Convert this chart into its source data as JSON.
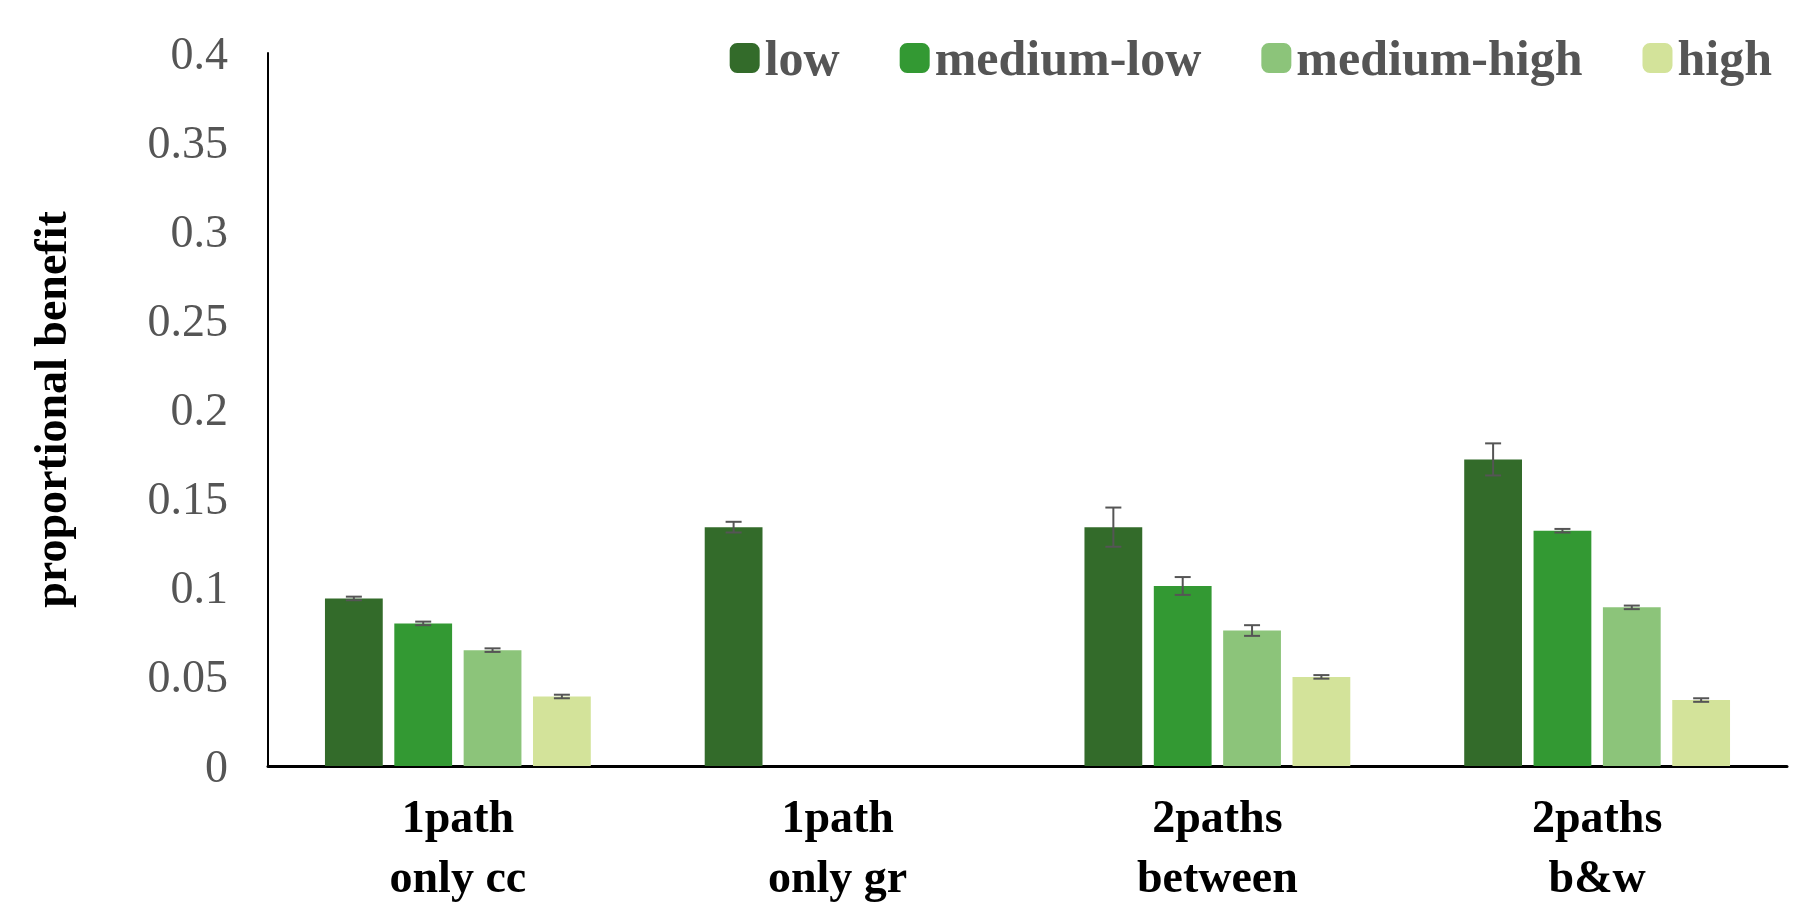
{
  "chart_data": {
    "type": "bar",
    "ylabel": "proportional benefit",
    "categories": [
      "1path\nonly cc",
      "1path\nonly gr",
      "2paths\nbetween",
      "2paths\nb&w"
    ],
    "series": [
      {
        "name": "low",
        "color": "#336b2a",
        "values": [
          0.094,
          0.134,
          0.134,
          0.172
        ],
        "errors": [
          0.001,
          0.003,
          0.011,
          0.009
        ]
      },
      {
        "name": "medium-low",
        "color": "#339933",
        "values": [
          0.08,
          null,
          0.101,
          0.132
        ],
        "errors": [
          0.001,
          null,
          0.005,
          0.001
        ]
      },
      {
        "name": "medium-high",
        "color": "#8cc47a",
        "values": [
          0.065,
          null,
          0.076,
          0.089
        ],
        "errors": [
          0.001,
          null,
          0.003,
          0.001
        ]
      },
      {
        "name": "high",
        "color": "#d3e39a",
        "values": [
          0.039,
          null,
          0.05,
          0.037
        ],
        "errors": [
          0.001,
          null,
          0.001,
          0.001
        ]
      }
    ],
    "ylim": [
      0,
      0.4
    ],
    "yticks": [
      0,
      0.05,
      0.1,
      0.15,
      0.2,
      0.25,
      0.3,
      0.35,
      0.4
    ],
    "grid": false,
    "legend": "top right"
  }
}
